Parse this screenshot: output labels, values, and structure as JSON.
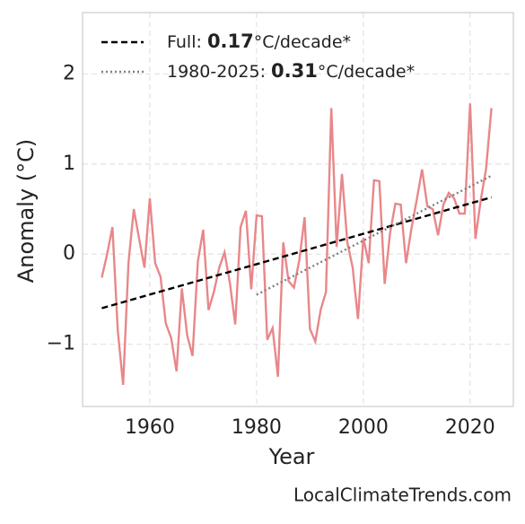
{
  "chart_data": {
    "type": "line",
    "xlabel": "Year",
    "ylabel": "Anomaly (°C)",
    "source": "LocalClimateTrends.com",
    "x": [
      1951,
      1952,
      1953,
      1954,
      1955,
      1956,
      1957,
      1958,
      1959,
      1960,
      1961,
      1962,
      1963,
      1964,
      1965,
      1966,
      1967,
      1968,
      1969,
      1970,
      1971,
      1972,
      1973,
      1974,
      1975,
      1976,
      1977,
      1978,
      1979,
      1980,
      1981,
      1982,
      1983,
      1984,
      1985,
      1986,
      1987,
      1988,
      1989,
      1990,
      1991,
      1992,
      1993,
      1994,
      1995,
      1996,
      1997,
      1998,
      1999,
      2000,
      2001,
      2002,
      2003,
      2004,
      2005,
      2006,
      2007,
      2008,
      2009,
      2010,
      2011,
      2012,
      2013,
      2014,
      2015,
      2016,
      2017,
      2018,
      2019,
      2020,
      2021,
      2022,
      2023,
      2024
    ],
    "series": [
      {
        "color": "#e8878a",
        "values": [
          -0.26,
          0.0,
          0.3,
          -0.85,
          -1.45,
          -0.1,
          0.5,
          0.17,
          -0.15,
          0.62,
          -0.1,
          -0.25,
          -0.77,
          -0.93,
          -1.3,
          -0.38,
          -0.9,
          -1.13,
          -0.08,
          0.27,
          -0.62,
          -0.42,
          -0.15,
          0.02,
          -0.32,
          -0.78,
          0.3,
          0.48,
          -0.39,
          0.43,
          0.42,
          -0.95,
          -0.82,
          -1.36,
          0.13,
          -0.3,
          -0.37,
          -0.07,
          0.41,
          -0.83,
          -0.97,
          -0.62,
          -0.42,
          1.62,
          0.08,
          0.89,
          0.13,
          -0.15,
          -0.72,
          0.18,
          -0.1,
          0.82,
          0.81,
          -0.33,
          0.23,
          0.56,
          0.55,
          -0.1,
          0.28,
          0.6,
          0.94,
          0.53,
          0.5,
          0.21,
          0.55,
          0.68,
          0.62,
          0.45,
          0.45,
          1.67,
          0.17,
          0.6,
          0.95,
          1.62
        ]
      },
      {
        "label_parts": [
          "Full: ",
          "0.17",
          "°C/decade*"
        ],
        "color": "#000000",
        "style": "dashed",
        "x": [
          1951,
          2024
        ],
        "values": [
          -0.6,
          0.63
        ]
      },
      {
        "label_parts": [
          "1980-2025: ",
          "0.31",
          "°C/decade*"
        ],
        "color": "#808080",
        "style": "dotted",
        "x": [
          1980,
          2024
        ],
        "values": [
          -0.45,
          0.87
        ]
      }
    ],
    "xlim": [
      1947.4,
      2028.1
    ],
    "ylim": [
      -1.69,
      2.68
    ],
    "xticks": [
      1960,
      1980,
      2000,
      2020
    ],
    "yticks": [
      {
        "value": -1,
        "label": "−1"
      },
      0,
      1,
      2
    ],
    "grid": true
  }
}
